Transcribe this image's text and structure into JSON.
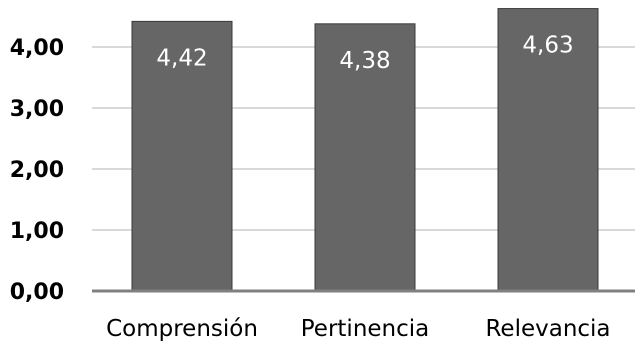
{
  "chart_data": {
    "type": "bar",
    "categories": [
      "Comprensión",
      "Pertinencia",
      "Relevancia"
    ],
    "values": [
      4.42,
      4.38,
      4.63
    ],
    "value_labels": [
      "4,42",
      "4,38",
      "4,63"
    ],
    "ylim": [
      0,
      4.6
    ],
    "yticks": [
      0,
      1,
      2,
      3,
      4
    ],
    "ytick_labels": [
      "0,00",
      "1,00",
      "2,00",
      "3,00",
      "4,00"
    ],
    "grid": true,
    "bar_color": "#666666",
    "title": "",
    "xlabel": "",
    "ylabel": ""
  }
}
